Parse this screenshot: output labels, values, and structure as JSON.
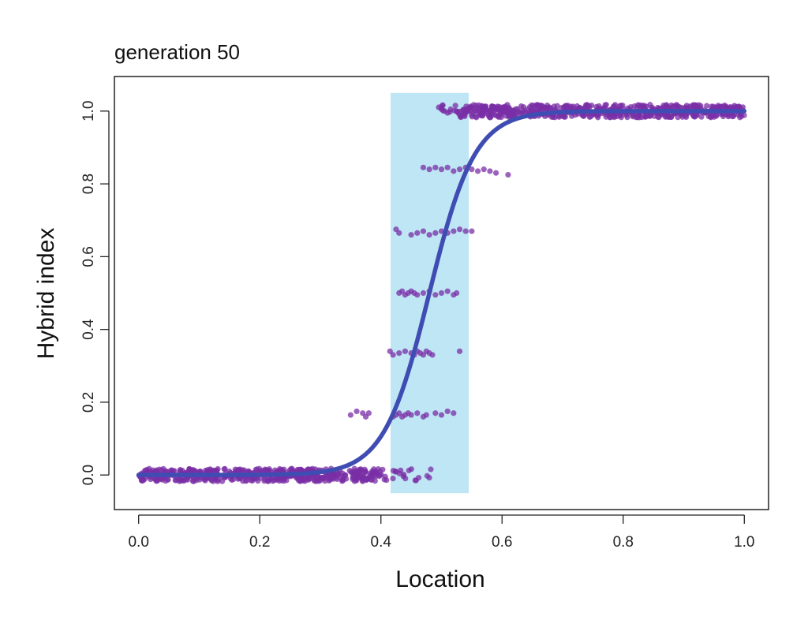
{
  "chart_data": {
    "type": "scatter",
    "title": "generation 50",
    "xlabel": "Location",
    "ylabel": "Hybrid index",
    "xlim": [
      -0.04,
      1.04
    ],
    "ylim": [
      -0.095,
      1.095
    ],
    "x_ticks": [
      "0.0",
      "0.2",
      "0.4",
      "0.6",
      "0.8",
      "1.0"
    ],
    "y_ticks": [
      "0.0",
      "0.2",
      "0.4",
      "0.6",
      "0.8",
      "1.0"
    ],
    "grid": false,
    "legend": "none",
    "highlight_band": {
      "x": [
        0.416,
        0.545
      ],
      "y": [
        -0.05,
        1.05
      ],
      "color": "#bfe6f5"
    },
    "cline": {
      "center": 0.48,
      "width": 0.15,
      "y_left": 0,
      "y_right": 1,
      "color": "#3f4db3"
    },
    "point_color": "#7a2fa6",
    "point_groups": [
      {
        "y": 0.0,
        "x_from": 0.0,
        "x_to": 0.4,
        "count": 520
      },
      {
        "y": 0.0,
        "x_from": 0.4,
        "x_to": 0.485,
        "count": 22
      },
      {
        "y": 0.0,
        "x_from": 0.485,
        "x_to": 0.485,
        "count": 0
      },
      {
        "y": 1.0,
        "x_from": 0.53,
        "x_to": 1.0,
        "count": 560
      },
      {
        "y": 1.0,
        "x_from": 0.495,
        "x_to": 0.53,
        "count": 10
      }
    ],
    "points": [
      [
        0.35,
        0.165
      ],
      [
        0.36,
        0.175
      ],
      [
        0.37,
        0.17
      ],
      [
        0.375,
        0.16
      ],
      [
        0.38,
        0.17
      ],
      [
        0.42,
        0.16
      ],
      [
        0.425,
        0.165
      ],
      [
        0.43,
        0.17
      ],
      [
        0.435,
        0.16
      ],
      [
        0.44,
        0.165
      ],
      [
        0.445,
        0.17
      ],
      [
        0.45,
        0.165
      ],
      [
        0.46,
        0.17
      ],
      [
        0.47,
        0.16
      ],
      [
        0.475,
        0.165
      ],
      [
        0.49,
        0.17
      ],
      [
        0.5,
        0.165
      ],
      [
        0.51,
        0.175
      ],
      [
        0.52,
        0.17
      ],
      [
        0.415,
        0.34
      ],
      [
        0.42,
        0.33
      ],
      [
        0.43,
        0.335
      ],
      [
        0.44,
        0.34
      ],
      [
        0.45,
        0.335
      ],
      [
        0.455,
        0.33
      ],
      [
        0.46,
        0.34
      ],
      [
        0.465,
        0.335
      ],
      [
        0.47,
        0.33
      ],
      [
        0.475,
        0.34
      ],
      [
        0.48,
        0.335
      ],
      [
        0.485,
        0.33
      ],
      [
        0.53,
        0.34
      ],
      [
        0.43,
        0.5
      ],
      [
        0.435,
        0.505
      ],
      [
        0.44,
        0.495
      ],
      [
        0.445,
        0.5
      ],
      [
        0.45,
        0.505
      ],
      [
        0.455,
        0.5
      ],
      [
        0.46,
        0.495
      ],
      [
        0.47,
        0.5
      ],
      [
        0.48,
        0.505
      ],
      [
        0.49,
        0.495
      ],
      [
        0.5,
        0.5
      ],
      [
        0.51,
        0.505
      ],
      [
        0.52,
        0.495
      ],
      [
        0.525,
        0.5
      ],
      [
        0.425,
        0.675
      ],
      [
        0.43,
        0.665
      ],
      [
        0.45,
        0.66
      ],
      [
        0.46,
        0.665
      ],
      [
        0.47,
        0.67
      ],
      [
        0.48,
        0.66
      ],
      [
        0.49,
        0.665
      ],
      [
        0.5,
        0.67
      ],
      [
        0.51,
        0.665
      ],
      [
        0.52,
        0.67
      ],
      [
        0.53,
        0.675
      ],
      [
        0.54,
        0.67
      ],
      [
        0.55,
        0.67
      ],
      [
        0.47,
        0.845
      ],
      [
        0.48,
        0.84
      ],
      [
        0.49,
        0.845
      ],
      [
        0.5,
        0.84
      ],
      [
        0.51,
        0.845
      ],
      [
        0.52,
        0.835
      ],
      [
        0.53,
        0.84
      ],
      [
        0.54,
        0.845
      ],
      [
        0.55,
        0.84
      ],
      [
        0.56,
        0.835
      ],
      [
        0.57,
        0.84
      ],
      [
        0.58,
        0.835
      ],
      [
        0.59,
        0.83
      ],
      [
        0.61,
        0.825
      ],
      [
        0.5,
        1.01
      ],
      [
        0.505,
        1.0
      ],
      [
        0.51,
        0.995
      ],
      [
        0.515,
        1.005
      ],
      [
        0.525,
        1.0
      ]
    ]
  }
}
